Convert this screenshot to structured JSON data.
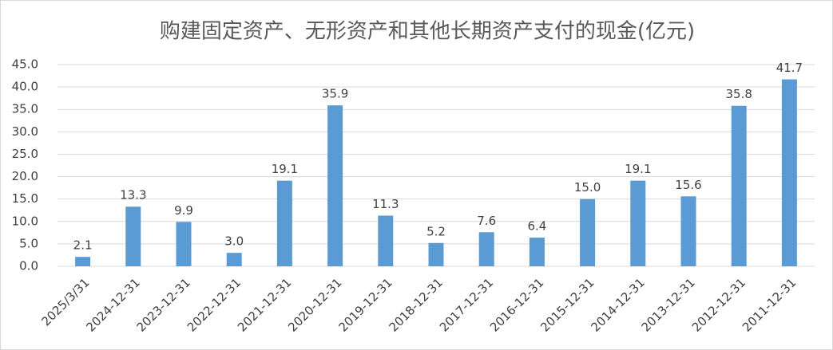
{
  "chart_data": {
    "type": "bar",
    "title": "购建固定资产、无形资产和其他长期资产支付的现金(亿元)",
    "categories": [
      "2025/3/31",
      "2024-12-31",
      "2023-12-31",
      "2022-12-31",
      "2021-12-31",
      "2020-12-31",
      "2019-12-31",
      "2018-12-31",
      "2017-12-31",
      "2016-12-31",
      "2015-12-31",
      "2014-12-31",
      "2013-12-31",
      "2012-12-31",
      "2011-12-31"
    ],
    "values": [
      2.1,
      13.3,
      9.9,
      3.0,
      19.1,
      35.9,
      11.3,
      5.2,
      7.6,
      6.4,
      15.0,
      19.1,
      15.6,
      35.8,
      41.7
    ],
    "value_labels": [
      "2.1",
      "13.3",
      "9.9",
      "3.0",
      "19.1",
      "35.9",
      "11.3",
      "5.2",
      "7.6",
      "6.4",
      "15.0",
      "19.1",
      "15.6",
      "35.8",
      "41.7"
    ],
    "color": "#5b9bd5",
    "ylim": [
      0,
      45
    ],
    "yticks": [
      {
        "value": 0,
        "label": "0.0"
      },
      {
        "value": 5,
        "label": "5.0"
      },
      {
        "value": 10,
        "label": "10.0"
      },
      {
        "value": 15,
        "label": "15.0"
      },
      {
        "value": 20,
        "label": "20.0"
      },
      {
        "value": 25,
        "label": "25.0"
      },
      {
        "value": 30,
        "label": "30.0"
      },
      {
        "value": 35,
        "label": "35.0"
      },
      {
        "value": 40,
        "label": "40.0"
      },
      {
        "value": 45,
        "label": "45.0"
      }
    ],
    "grid": true
  }
}
